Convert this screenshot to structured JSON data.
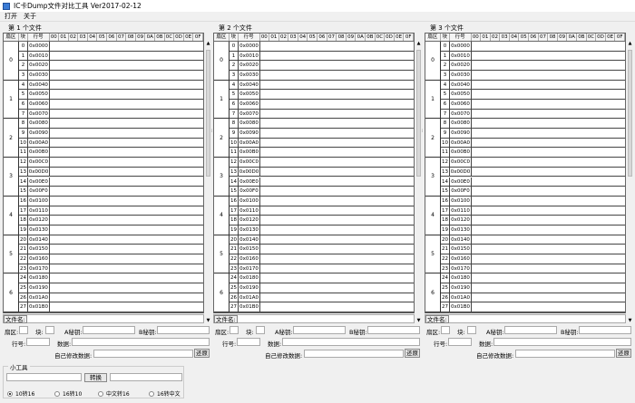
{
  "title": "IC卡Dump文件对比工具  Ver2017-02-12",
  "menu": [
    "打开",
    "关于"
  ],
  "panels": [
    {
      "title": "第 1 个文件"
    },
    {
      "title": "第 2 个文件"
    },
    {
      "title": "第 3 个文件"
    }
  ],
  "headers": {
    "sector": "扇区",
    "block": "块",
    "line": "行号",
    "cols": [
      "00",
      "01",
      "02",
      "03",
      "04",
      "05",
      "06",
      "07",
      "08",
      "09",
      "0A",
      "0B",
      "0C",
      "0D",
      "0E",
      "0F"
    ]
  },
  "sectors": [
    "0",
    "1",
    "2",
    "3",
    "4",
    "5",
    "6"
  ],
  "rows": [
    [
      "0",
      "0x0000"
    ],
    [
      "1",
      "0x0010"
    ],
    [
      "2",
      "0x0020"
    ],
    [
      "3",
      "0x0030"
    ],
    [
      "4",
      "0x0040"
    ],
    [
      "5",
      "0x0050"
    ],
    [
      "6",
      "0x0060"
    ],
    [
      "7",
      "0x0070"
    ],
    [
      "8",
      "0x0080"
    ],
    [
      "9",
      "0x0090"
    ],
    [
      "10",
      "0x00A0"
    ],
    [
      "11",
      "0x00B0"
    ],
    [
      "12",
      "0x00C0"
    ],
    [
      "13",
      "0x00D0"
    ],
    [
      "14",
      "0x00E0"
    ],
    [
      "15",
      "0x00F0"
    ],
    [
      "16",
      "0x0100"
    ],
    [
      "17",
      "0x0110"
    ],
    [
      "18",
      "0x0120"
    ],
    [
      "19",
      "0x0130"
    ],
    [
      "20",
      "0x0140"
    ],
    [
      "21",
      "0x0150"
    ],
    [
      "22",
      "0x0160"
    ],
    [
      "23",
      "0x0170"
    ],
    [
      "24",
      "0x0180"
    ],
    [
      "25",
      "0x0190"
    ],
    [
      "26",
      "0x01A0"
    ],
    [
      "27",
      "0x01B0"
    ]
  ],
  "form": {
    "filename_label": "文件名:",
    "sector_label": "扇区:",
    "block_label": "块:",
    "keya_label": "A秘钥:",
    "keyb_label": "B秘钥:",
    "line_label": "行号:",
    "data_label": "数据:",
    "custom_label": "自己修改数据:",
    "restore": "还原"
  },
  "tools": {
    "legend": "小工具",
    "convert": "转换",
    "options": [
      "10转16",
      "16转10",
      "中文转16",
      "16转中文"
    ],
    "selected": 0
  }
}
